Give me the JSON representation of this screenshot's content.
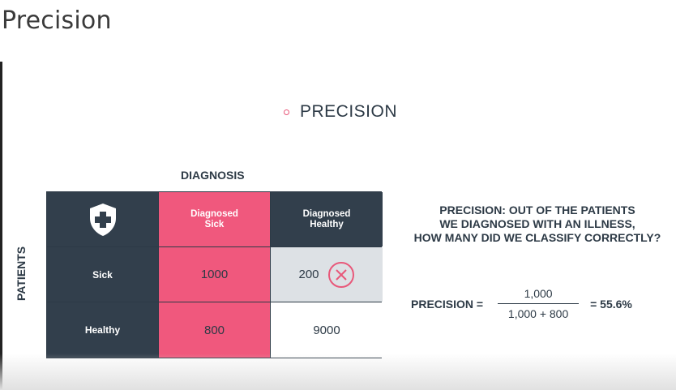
{
  "page": {
    "title": "Precision"
  },
  "slide": {
    "heading": "PRECISION",
    "diagnosis_label": "DIAGNOSIS",
    "patients_label": "PATIENTS",
    "matrix": {
      "col_headers": [
        "Diagnosed Sick",
        "Diagnosed Healthy"
      ],
      "col_headers_lines": [
        [
          "Diagnosed",
          "Sick"
        ],
        [
          "Diagnosed",
          "Healthy"
        ]
      ],
      "row_headers": [
        "Sick",
        "Healthy"
      ],
      "values": [
        [
          "1000",
          "200"
        ],
        [
          "800",
          "9000"
        ]
      ]
    },
    "explanation": {
      "line1": "PRECISION: OUT OF THE PATIENTS",
      "line2": "WE DIAGNOSED WITH AN ILLNESS,",
      "line3": "HOW MANY DID WE CLASSIFY CORRECTLY?"
    },
    "formula": {
      "label": "PRECISION =",
      "numerator": "1,000",
      "denominator": "1,000 + 800",
      "result": "= 55.6%"
    }
  },
  "icons": {
    "shield": "shield-cross-icon",
    "wrong": "x-circle-icon"
  },
  "colors": {
    "dark": "#323f4c",
    "pink": "#f0587d",
    "grey": "#dde1e5",
    "accent_red": "#e8587a"
  }
}
